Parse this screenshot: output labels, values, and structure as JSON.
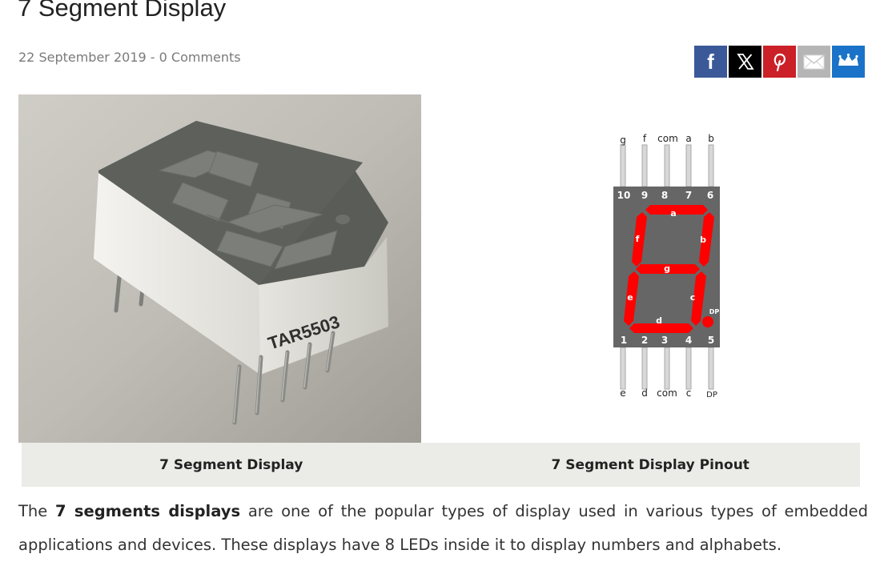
{
  "article": {
    "title": "7 Segment Display",
    "date": "22 September 2019",
    "separator": " - ",
    "comments": "0 Comments"
  },
  "share": {
    "buttons": [
      {
        "name": "facebook",
        "glyph": "f",
        "color": "#3b5998"
      },
      {
        "name": "x",
        "glyph": "X",
        "color": "#000000"
      },
      {
        "name": "pinterest",
        "glyph": "P",
        "color": "#cb2027"
      },
      {
        "name": "email",
        "glyph": "envelope",
        "color": "#b5b5b5"
      },
      {
        "name": "sumo",
        "glyph": "crown",
        "color": "#1a73c8"
      }
    ]
  },
  "figures": {
    "left_caption": "7 Segment Display",
    "right_caption": "7 Segment Display Pinout",
    "photo_print": "TAR5503",
    "pinout": {
      "top_labels": [
        "g",
        "f",
        "com",
        "a",
        "b"
      ],
      "top_pins": [
        "10",
        "9",
        "8",
        "7",
        "6"
      ],
      "bottom_pins": [
        "1",
        "2",
        "3",
        "4",
        "5"
      ],
      "bottom_labels": [
        "e",
        "d",
        "com",
        "c",
        "DP"
      ],
      "segments": [
        "a",
        "b",
        "c",
        "d",
        "e",
        "f",
        "g"
      ],
      "dp_label": "DP",
      "segment_color": "#ff0000",
      "body_color": "#666666"
    }
  },
  "body": {
    "intro": "The ",
    "bold": "7 segments displays",
    "rest": " are one of the popular types of display used in various types of embedded applications and devices. These displays have 8 LEDs inside it to display numbers and alphabets."
  }
}
